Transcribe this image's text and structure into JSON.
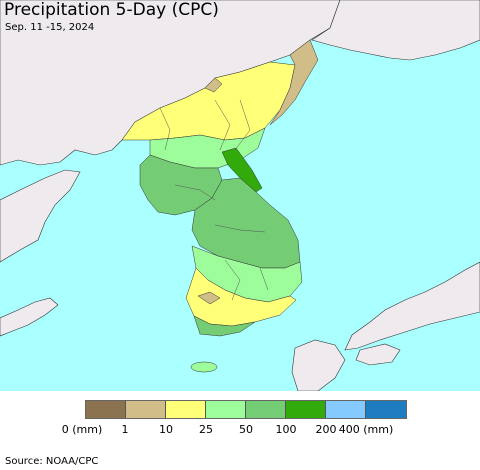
{
  "header": {
    "title": "Precipitation 5-Day (CPC)",
    "subtitle": "Sep. 11 -15, 2024"
  },
  "colors": {
    "sea": "#aaffff",
    "foreign_land": "#eeeaee",
    "border_line": "#333333"
  },
  "legend": {
    "unit_label": "(mm)",
    "classes": [
      {
        "color": "#8b7350"
      },
      {
        "color": "#d1bd88"
      },
      {
        "color": "#ffff78"
      },
      {
        "color": "#9dfd9a"
      },
      {
        "color": "#74cc74"
      },
      {
        "color": "#32aa0c"
      },
      {
        "color": "#84cafe"
      },
      {
        "color": "#1e7cc0"
      }
    ],
    "ticks": [
      "0 (mm)",
      "1",
      "10",
      "25",
      "50",
      "100",
      "200",
      "400 (mm)"
    ]
  },
  "footer": {
    "source": "Source: NOAA/CPC"
  }
}
